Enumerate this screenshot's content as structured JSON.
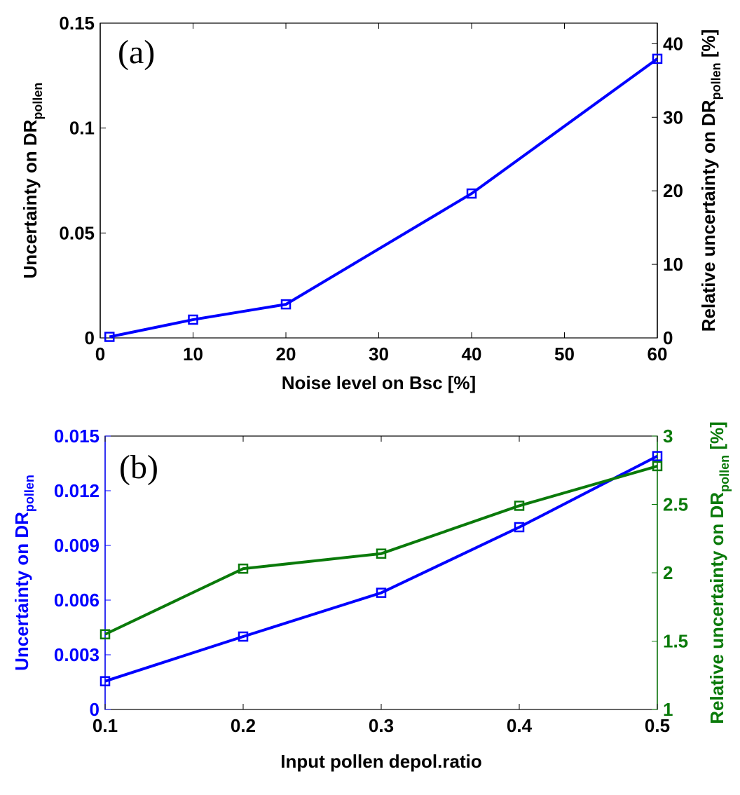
{
  "chart_data": [
    {
      "type": "line",
      "panel_label": "(a)",
      "xlabel": "Noise level on Bsc [%]",
      "ylabel": "Uncertainty on DR",
      "ylabel_sub": "pollen",
      "y2label": "Relative uncertainty on DR",
      "y2label_sub": "pollen",
      "y2label_suffix": " [%]",
      "xlim": [
        0,
        60
      ],
      "ylim": [
        0,
        0.15
      ],
      "y2lim": [
        0,
        42.8
      ],
      "xticks": [
        0,
        10,
        20,
        30,
        40,
        50,
        60
      ],
      "xtick_labels": [
        "0",
        "10",
        "20",
        "30",
        "40",
        "50",
        "60"
      ],
      "yticks": [
        0,
        0.05,
        0.1,
        0.15
      ],
      "ytick_labels": [
        "0",
        "0.05",
        "0.1",
        "0.15"
      ],
      "y2ticks": [
        0,
        10,
        20,
        30,
        40
      ],
      "y2tick_labels": [
        "0",
        "10",
        "20",
        "30",
        "40"
      ],
      "grid": false,
      "series": [
        {
          "name": "Uncertainty on DR_pollen",
          "axis": "left",
          "color": "#0000ff",
          "marker": "square",
          "x": [
            1,
            10,
            20,
            40,
            60
          ],
          "y": [
            0.0005,
            0.0087,
            0.016,
            0.0688,
            0.133
          ]
        }
      ],
      "colors": {
        "left_axis": "#000000",
        "right_axis": "#000000"
      }
    },
    {
      "type": "line",
      "panel_label": "(b)",
      "xlabel": "Input pollen depol.ratio",
      "ylabel": "Uncertainty on DR",
      "ylabel_sub": "pollen",
      "y2label": "Relative uncertainty on DR",
      "y2label_sub": "pollen",
      "y2label_suffix": " [%]",
      "xlim": [
        0.1,
        0.5
      ],
      "ylim": [
        0,
        0.015
      ],
      "y2lim": [
        1,
        3
      ],
      "xticks": [
        0.1,
        0.2,
        0.3,
        0.4,
        0.5
      ],
      "xtick_labels": [
        "0.1",
        "0.2",
        "0.3",
        "0.4",
        "0.5"
      ],
      "yticks": [
        0,
        0.003,
        0.006,
        0.009,
        0.012,
        0.015
      ],
      "ytick_labels": [
        "0",
        "0.003",
        "0.006",
        "0.009",
        "0.012",
        "0.015"
      ],
      "y2ticks": [
        1,
        1.5,
        2,
        2.5,
        3
      ],
      "y2tick_labels": [
        "1",
        "1.5",
        "2",
        "2.5",
        "3"
      ],
      "grid": false,
      "series": [
        {
          "name": "Uncertainty on DR_pollen",
          "axis": "left",
          "color": "#0000ff",
          "marker": "square",
          "x": [
            0.1,
            0.2,
            0.3,
            0.4,
            0.5
          ],
          "y": [
            0.00155,
            0.004,
            0.0064,
            0.01,
            0.0139
          ]
        },
        {
          "name": "Relative uncertainty on DR_pollen [%]",
          "axis": "right",
          "color": "#0a7a0a",
          "marker": "square",
          "x": [
            0.1,
            0.2,
            0.3,
            0.4,
            0.5
          ],
          "y": [
            1.55,
            2.03,
            2.14,
            2.49,
            2.78
          ]
        }
      ],
      "colors": {
        "left_axis": "#0000ff",
        "right_axis": "#0a7a0a"
      }
    }
  ]
}
